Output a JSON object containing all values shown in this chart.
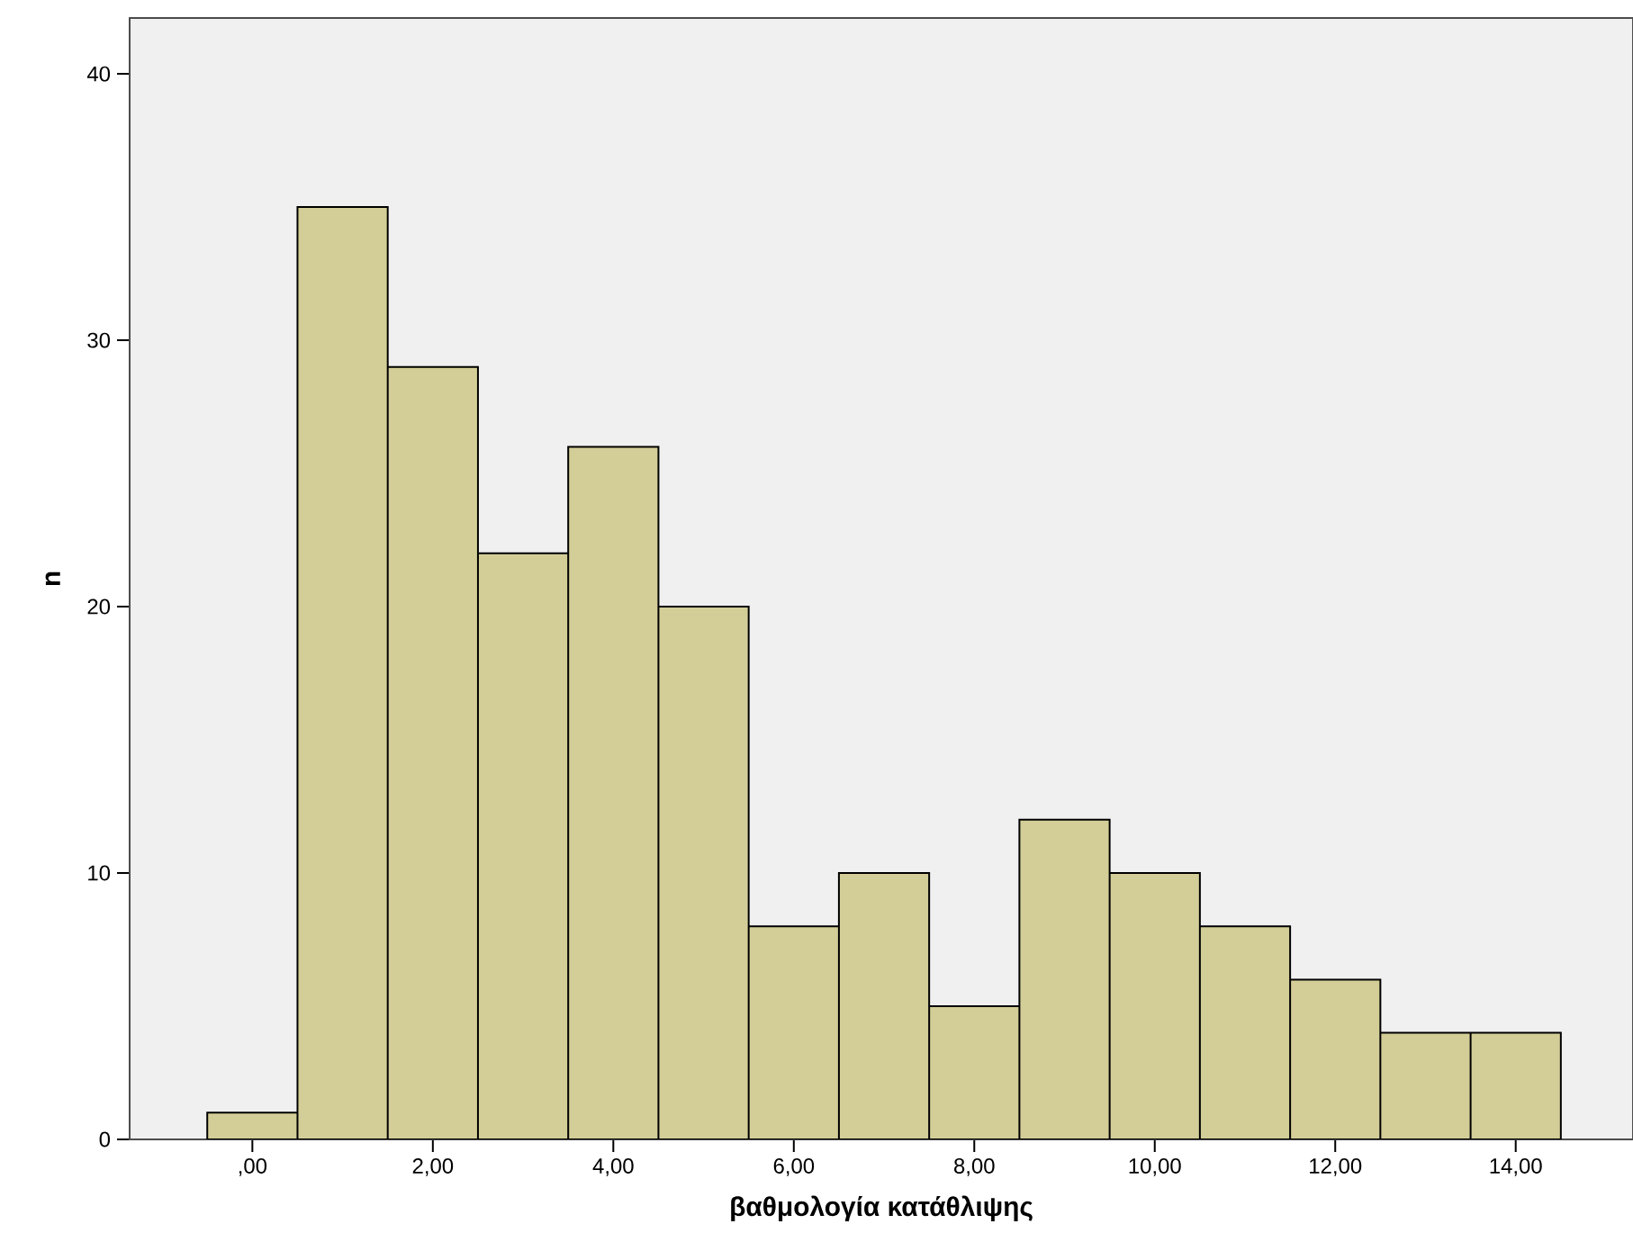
{
  "chart_data": {
    "type": "histogram",
    "xlabel": "βαθμολογία κατάθλιψης",
    "ylabel": "n",
    "bins": [
      -0.5,
      0.5,
      1.5,
      2.5,
      3.5,
      4.5,
      5.5,
      6.5,
      7.5,
      8.5,
      9.5,
      10.5,
      11.5,
      12.5,
      13.5,
      14.5
    ],
    "values": [
      1,
      35,
      29,
      22,
      26,
      20,
      8,
      10,
      5,
      12,
      10,
      8,
      6,
      4,
      4
    ],
    "color": "#d3ce97",
    "xlim": [
      -1.36,
      15.3
    ],
    "ylim": [
      0,
      42.1
    ],
    "xticks": [
      {
        "value": 0,
        "label": ",00"
      },
      {
        "value": 2,
        "label": "2,00"
      },
      {
        "value": 4,
        "label": "4,00"
      },
      {
        "value": 6,
        "label": "6,00"
      },
      {
        "value": 8,
        "label": "8,00"
      },
      {
        "value": 10,
        "label": "10,00"
      },
      {
        "value": 12,
        "label": "12,00"
      },
      {
        "value": 14,
        "label": "14,00"
      }
    ],
    "yticks": [
      0,
      10,
      20,
      30,
      40
    ],
    "grid": false
  }
}
